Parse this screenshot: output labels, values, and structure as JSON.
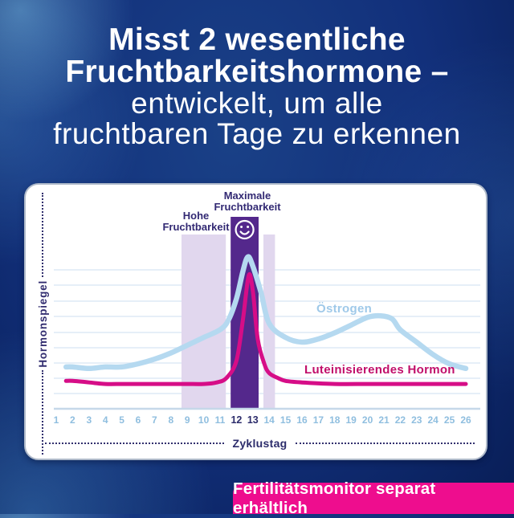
{
  "title": {
    "bold_line1": "Misst 2 wesentliche",
    "bold_line2": "Fruchtbarkeitshormone –",
    "light_line1": "entwickelt, um alle",
    "light_line2": "fruchtbaren Tage zu erkennen"
  },
  "chart": {
    "y_axis_label": "Hormonspiegel",
    "x_axis_label": "Zyklustag",
    "high_fertility_label": "Hohe\nFruchtbarkeit",
    "peak_fertility_label": "Maximale\nFruchtbarkeit"
  },
  "banner": {
    "text": "Fertilitätsmonitor separat erhältlich",
    "bg_color": "#EE0D8E"
  },
  "colors": {
    "background_blue": "#12307B",
    "card_bg": "#FFFFFF",
    "dark_text": "#312C6F",
    "light_tick_text": "#8FBEDF",
    "gridline": "#DEEAF5",
    "axis_line": "#C6D8E9",
    "accent_pink": "#EE0D8E"
  },
  "chart_data": {
    "type": "line",
    "title": "",
    "xlabel": "Zyklustag",
    "ylabel": "Hormonspiegel",
    "x_ticks": [
      1,
      2,
      3,
      4,
      5,
      6,
      7,
      8,
      9,
      10,
      11,
      12,
      13,
      14,
      15,
      16,
      17,
      18,
      19,
      20,
      21,
      22,
      23,
      24,
      25,
      26
    ],
    "bold_x_ticks": [
      12,
      13
    ],
    "y_axis_note": "unitless hormone level; 0 = baseline axis, ~1 unit per gridline, 9 gridlines, no numeric ticks",
    "grid": true,
    "series": [
      {
        "name": "Östrogen",
        "color": "#B5D9F0",
        "label_color": "#9FC9E9",
        "x": [
          1.6,
          2,
          3,
          4,
          5,
          6,
          7,
          8,
          9,
          10,
          11,
          11.5,
          12,
          12.4,
          12.7,
          13,
          13.5,
          14,
          15,
          16,
          17,
          18,
          19,
          20,
          20.8,
          21.5,
          22,
          23,
          24,
          25,
          26
        ],
        "y": [
          2.7,
          2.7,
          2.6,
          2.7,
          2.7,
          2.9,
          3.2,
          3.6,
          4.1,
          4.6,
          5.1,
          5.7,
          7.1,
          8.9,
          9.8,
          9.2,
          7.5,
          5.5,
          4.6,
          4.3,
          4.5,
          4.9,
          5.4,
          5.9,
          6.0,
          5.8,
          5.1,
          4.3,
          3.5,
          2.9,
          2.6
        ]
      },
      {
        "name": "Luteinisierendes Hormon",
        "color": "#D60D87",
        "label_color": "#C10F6B",
        "x": [
          1.6,
          2,
          3,
          4,
          5,
          6,
          7,
          8,
          9,
          10,
          10.8,
          11.4,
          12,
          12.4,
          12.75,
          13,
          13.3,
          13.7,
          14,
          14.5,
          15,
          16,
          18,
          20,
          22,
          24,
          26
        ],
        "y": [
          1.8,
          1.8,
          1.7,
          1.6,
          1.6,
          1.6,
          1.6,
          1.6,
          1.6,
          1.6,
          1.7,
          2.0,
          3.1,
          5.8,
          8.6,
          7.6,
          4.5,
          2.9,
          2.3,
          2.0,
          1.8,
          1.7,
          1.6,
          1.6,
          1.6,
          1.6,
          1.6
        ]
      }
    ],
    "bands": [
      {
        "label": "Hohe Fruchtbarkeit",
        "day_start": 9,
        "day_end": 11,
        "color": "#E1D7EE",
        "peak": false
      },
      {
        "label": "Maximale Fruchtbarkeit",
        "day_start": 12,
        "day_end": 13,
        "color": "#54288C",
        "peak": true,
        "icon": "smiley-face-icon"
      },
      {
        "label": "",
        "day_start": 14,
        "day_end": 14,
        "color": "#E1D7EE",
        "peak": false
      }
    ],
    "legend_position": "labels next to curves"
  }
}
